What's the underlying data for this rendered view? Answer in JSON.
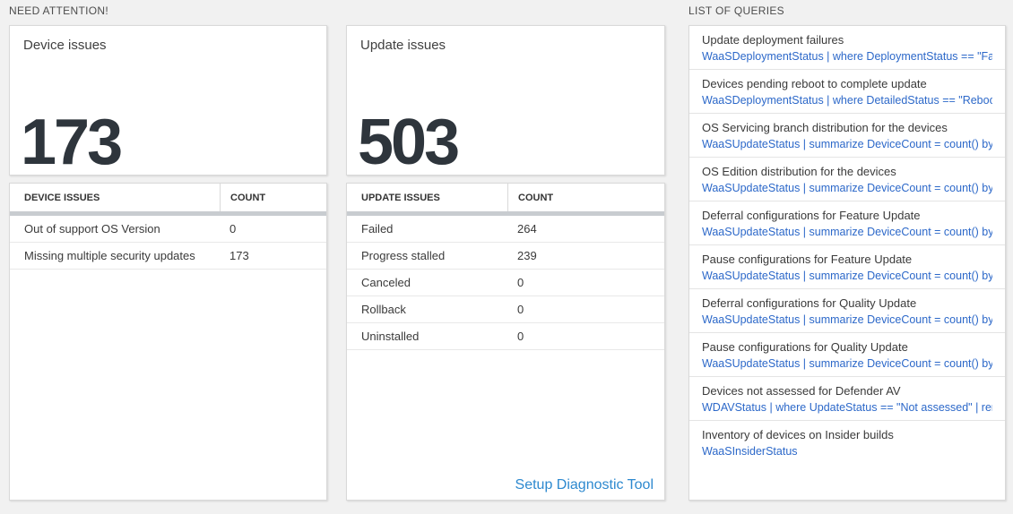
{
  "sections": {
    "need_attention": "NEED ATTENTION!",
    "list_of_queries": "LIST OF QUERIES"
  },
  "device_card": {
    "title": "Device issues",
    "value": "173"
  },
  "device_table": {
    "headers": [
      "DEVICE ISSUES",
      "COUNT"
    ],
    "rows": [
      {
        "label": "Out of support OS Version",
        "count": "0"
      },
      {
        "label": "Missing multiple security updates",
        "count": "173"
      }
    ]
  },
  "update_card": {
    "title": "Update issues",
    "value": "503"
  },
  "update_table": {
    "headers": [
      "UPDATE ISSUES",
      "COUNT"
    ],
    "rows": [
      {
        "label": "Failed",
        "count": "264"
      },
      {
        "label": "Progress stalled",
        "count": "239"
      },
      {
        "label": "Canceled",
        "count": "0"
      },
      {
        "label": "Rollback",
        "count": "0"
      },
      {
        "label": "Uninstalled",
        "count": "0"
      }
    ],
    "footer_link": "Setup Diagnostic Tool"
  },
  "queries": {
    "items": [
      {
        "title": "Update deployment failures",
        "query": "WaaSDeploymentStatus | where DeploymentStatus == \"Failed\" |..."
      },
      {
        "title": "Devices pending reboot to complete update",
        "query": "WaaSDeploymentStatus | where DetailedStatus == \"Reboot pend..."
      },
      {
        "title": "OS Servicing branch distribution for the devices",
        "query": "WaaSUpdateStatus | summarize DeviceCount = count() by OSSer..."
      },
      {
        "title": "OS Edition distribution for the devices",
        "query": "WaaSUpdateStatus | summarize DeviceCount = count() by OSEdit..."
      },
      {
        "title": "Deferral configurations for Feature Update",
        "query": "WaaSUpdateStatus | summarize DeviceCount = count() by Featur..."
      },
      {
        "title": "Pause configurations for Feature Update",
        "query": "WaaSUpdateStatus | summarize DeviceCount = count() by Featur..."
      },
      {
        "title": "Deferral configurations for Quality Update",
        "query": "WaaSUpdateStatus | summarize DeviceCount = count() by Qualit..."
      },
      {
        "title": "Pause configurations for Quality Update",
        "query": "WaaSUpdateStatus | summarize DeviceCount = count() by Qualit..."
      },
      {
        "title": "Devices not assessed for Defender AV",
        "query": "WDAVStatus | where UpdateStatus == \"Not assessed\" | render ta..."
      },
      {
        "title": "Inventory of devices on Insider builds",
        "query": "WaaSInsiderStatus"
      }
    ]
  },
  "colors": {
    "page_bg": "#f1f1f1",
    "panel_border": "#d9d9d9",
    "big_number": "#2e353c",
    "thick_divider": "#c8ccd0",
    "query_link_blue": "#2c68c9",
    "setup_link_blue": "#2d89cf"
  }
}
